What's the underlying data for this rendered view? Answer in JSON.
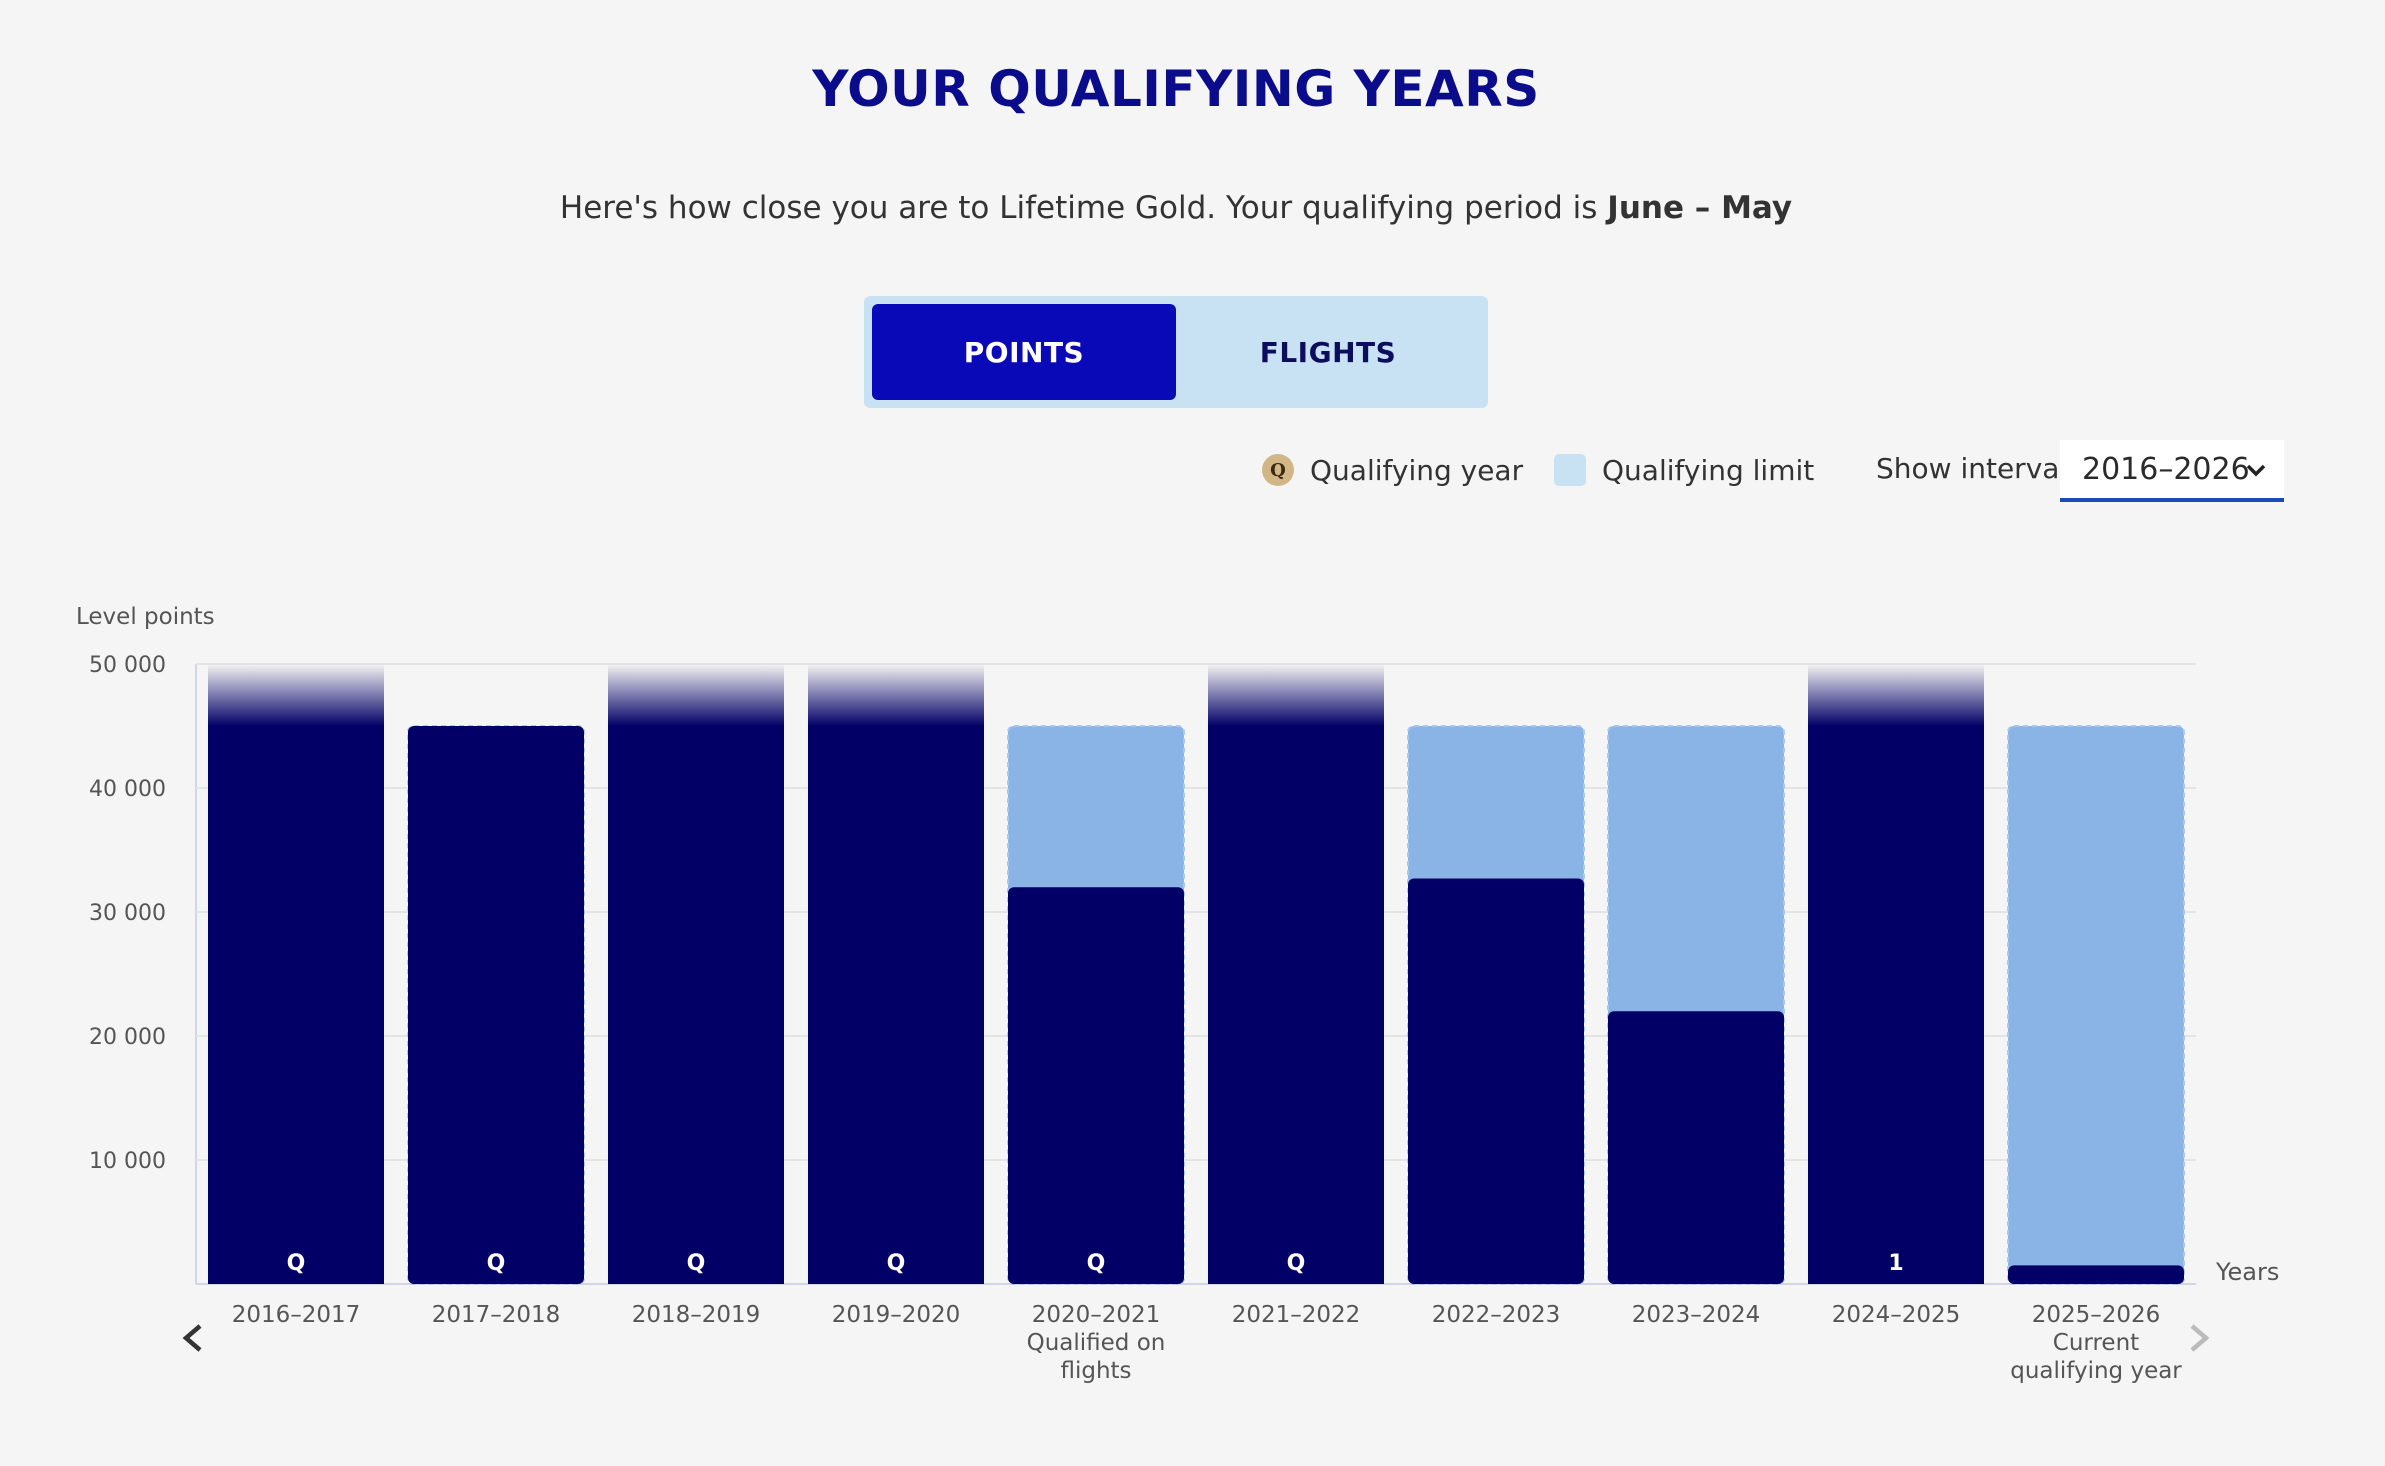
{
  "header": {
    "title": "YOUR QUALIFYING YEARS",
    "subtitle_prefix": "Here's how close you are to Lifetime Gold. Your qualifying period is ",
    "subtitle_period": "June – May"
  },
  "tabs": [
    {
      "label": "POINTS",
      "active": true
    },
    {
      "label": "FLIGHTS",
      "active": false
    }
  ],
  "legend": {
    "qualifying_year_badge": "Q",
    "qualifying_year_label": "Qualifying year",
    "qualifying_limit_label": "Qualifying limit"
  },
  "interval": {
    "label": "Show interval:",
    "selected": "2016–2026"
  },
  "colors": {
    "points": "#020066",
    "limit": "#8ab4e6",
    "accent": "#0a09b8",
    "title": "#0b0c8c"
  },
  "chart_data": {
    "type": "bar",
    "ylabel": "Level points",
    "xlabel": "Years",
    "ylim": [
      0,
      50000
    ],
    "yticks": [
      "10 000",
      "20 000",
      "30 000",
      "40 000",
      "50 000"
    ],
    "ytick_values": [
      10000,
      20000,
      30000,
      40000,
      50000
    ],
    "qualifying_limit": 45000,
    "categories": [
      {
        "label": "2016–2017",
        "sub": [],
        "points": 50000,
        "exceeds": true,
        "marker": "Q"
      },
      {
        "label": "2017–2018",
        "sub": [],
        "points": 45000,
        "exceeds": false,
        "marker": "Q"
      },
      {
        "label": "2018–2019",
        "sub": [],
        "points": 50000,
        "exceeds": true,
        "marker": "Q"
      },
      {
        "label": "2019–2020",
        "sub": [],
        "points": 50000,
        "exceeds": true,
        "marker": "Q"
      },
      {
        "label": "2020–2021",
        "sub": [
          "Qualified on",
          "flights"
        ],
        "points": 32000,
        "exceeds": false,
        "marker": "Q"
      },
      {
        "label": "2021–2022",
        "sub": [],
        "points": 50000,
        "exceeds": true,
        "marker": "Q"
      },
      {
        "label": "2022–2023",
        "sub": [],
        "points": 32700,
        "exceeds": false,
        "marker": ""
      },
      {
        "label": "2023–2024",
        "sub": [],
        "points": 22000,
        "exceeds": false,
        "marker": ""
      },
      {
        "label": "2024–2025",
        "sub": [],
        "points": 50000,
        "exceeds": true,
        "marker": "1"
      },
      {
        "label": "2025–2026",
        "sub": [
          "Current",
          "qualifying year"
        ],
        "points": 1500,
        "exceeds": false,
        "marker": ""
      }
    ]
  },
  "nav": {
    "prev_icon": "chevron-left-icon",
    "next_icon": "chevron-right-icon"
  }
}
